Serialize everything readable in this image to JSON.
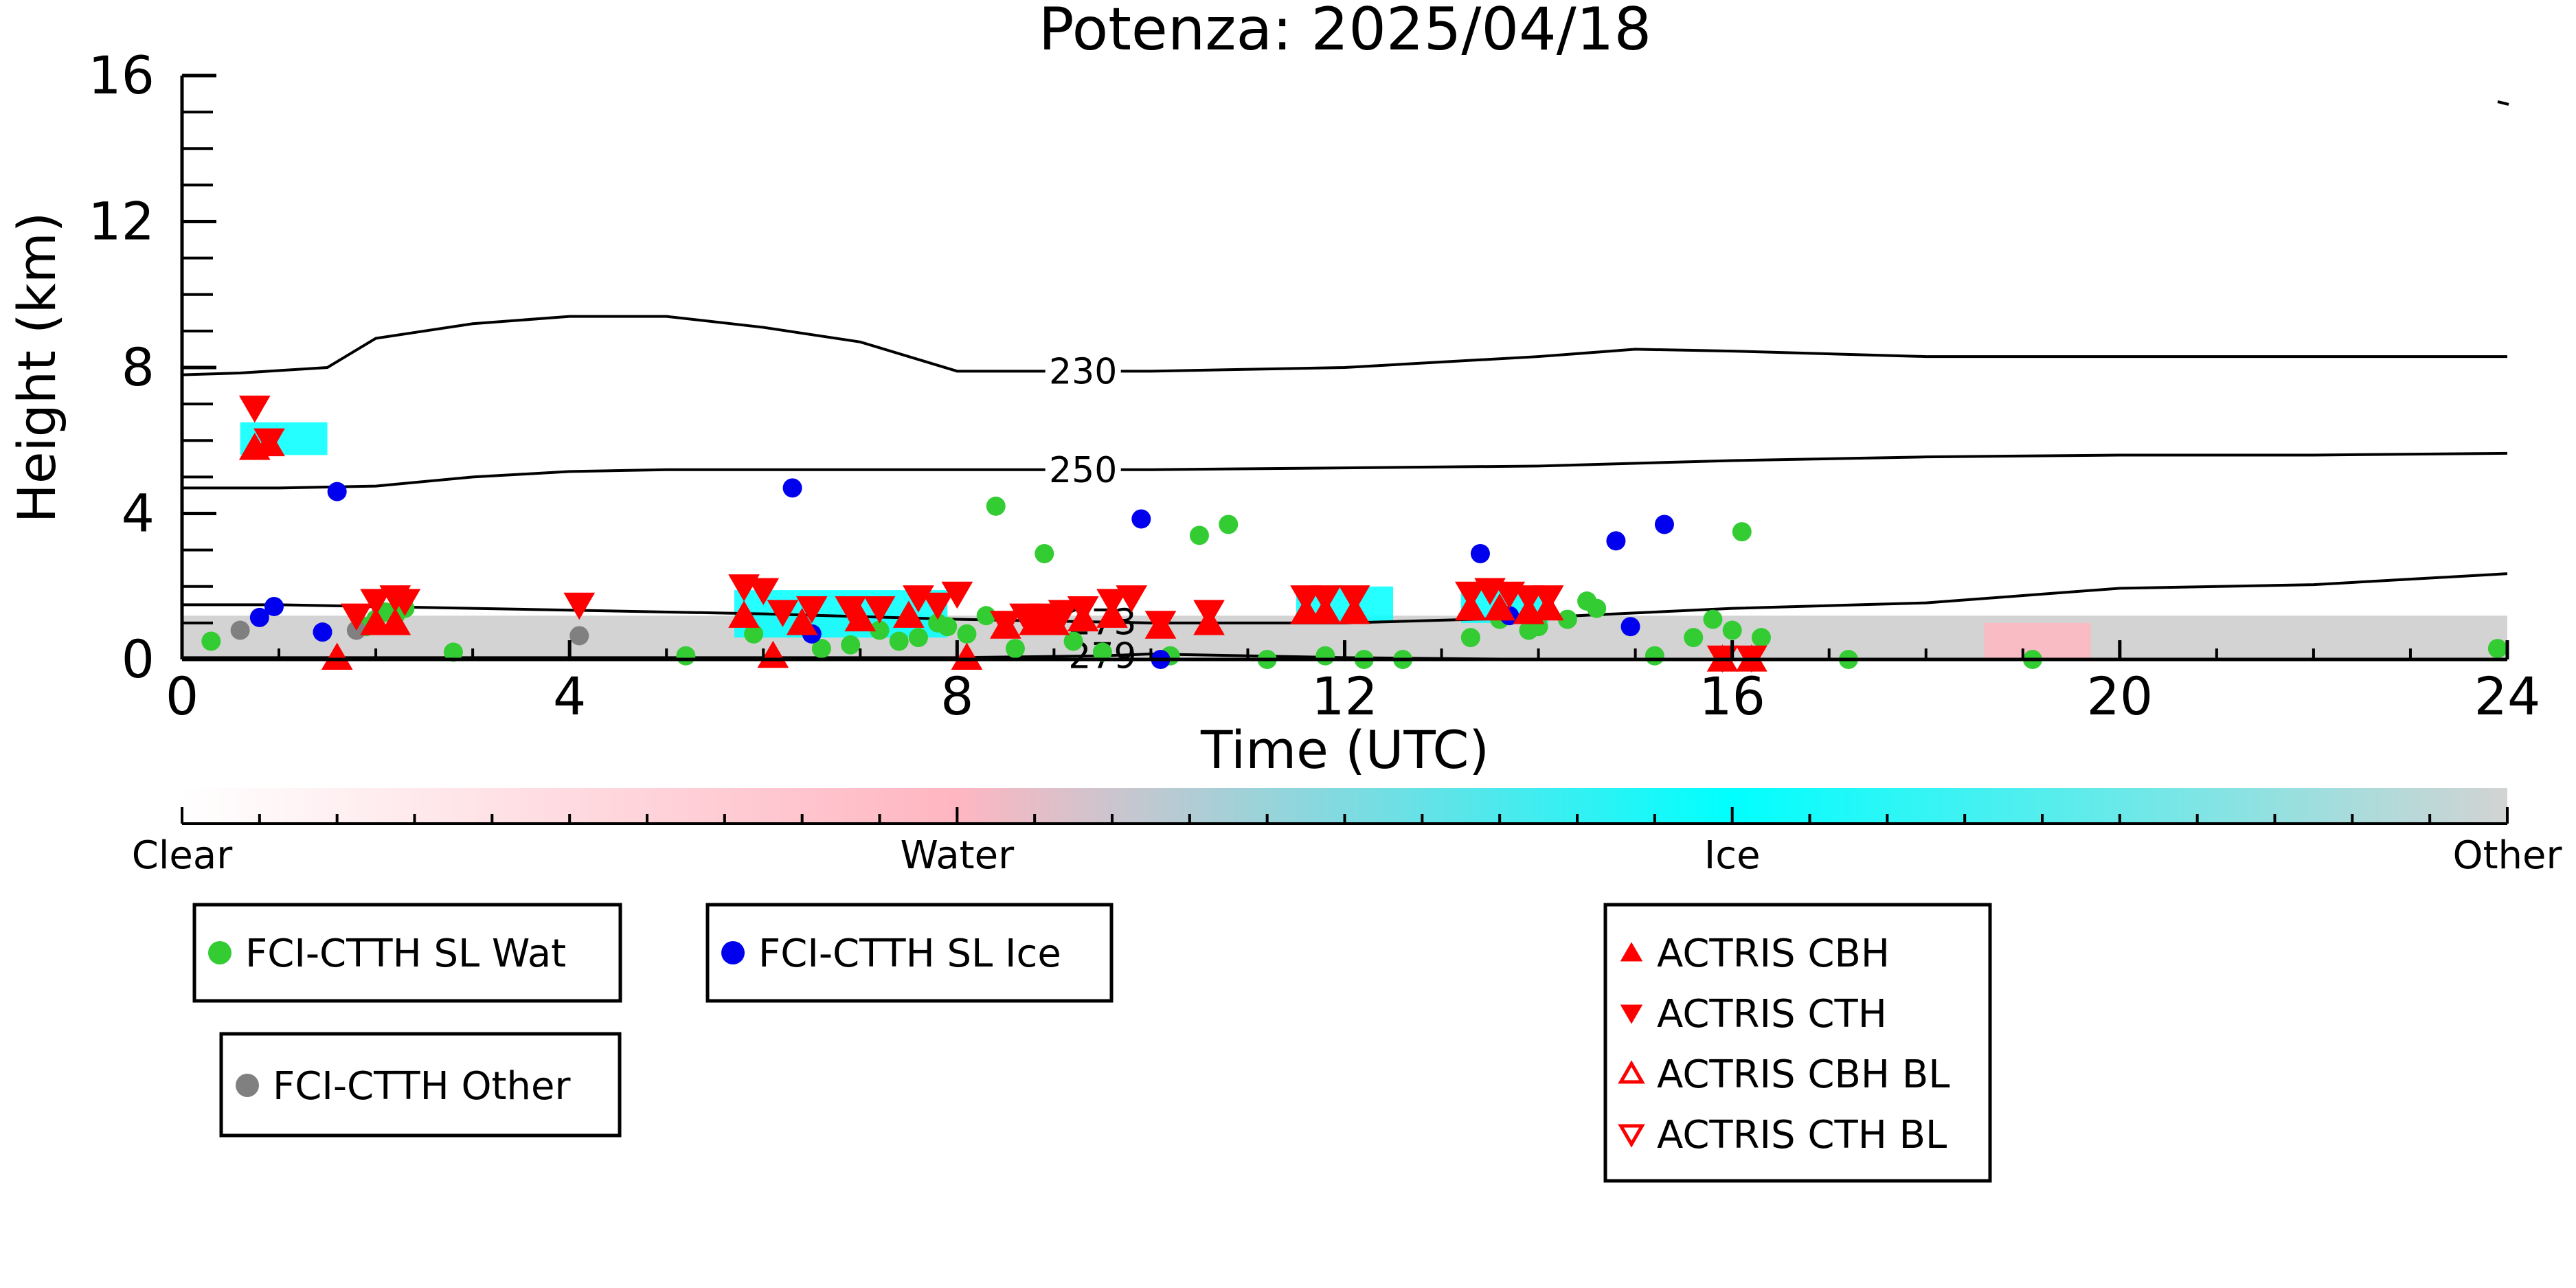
{
  "chart_data": {
    "type": "scatter",
    "title": "Potenza: 2025/04/18",
    "xlabel": "Time (UTC)",
    "ylabel": "Height (km)",
    "xlim": [
      0,
      24
    ],
    "ylim": [
      0,
      16
    ],
    "x_ticks": [
      "0",
      "4",
      "8",
      "12",
      "16",
      "20",
      "24"
    ],
    "y_ticks": [
      "0",
      "4",
      "8",
      "12",
      "16"
    ],
    "grid": false,
    "colorbar": {
      "labels": [
        "Clear",
        "Water",
        "Ice",
        "Other"
      ],
      "colors": [
        "#ffffff",
        "#ffb6c1",
        "#00ffff",
        "#d3d3d3"
      ]
    },
    "contours": [
      {
        "label": "230",
        "x": [
          0,
          0.6,
          1.5,
          2,
          3,
          4,
          5,
          6,
          7,
          7.5,
          8,
          10,
          12,
          14,
          15,
          16,
          18,
          20,
          22,
          24
        ],
        "y": [
          7.8,
          7.85,
          8.0,
          8.8,
          9.2,
          9.4,
          9.4,
          9.1,
          8.7,
          8.3,
          7.9,
          7.9,
          8.0,
          8.3,
          8.5,
          8.45,
          8.3,
          8.3,
          8.3,
          8.3
        ]
      },
      {
        "label": "250",
        "x": [
          0,
          1,
          2,
          3,
          4,
          5,
          6,
          8,
          10,
          12,
          14,
          16,
          18,
          20,
          22,
          24
        ],
        "y": [
          4.7,
          4.7,
          4.75,
          5.0,
          5.15,
          5.2,
          5.2,
          5.2,
          5.2,
          5.25,
          5.3,
          5.45,
          5.55,
          5.6,
          5.6,
          5.65
        ]
      },
      {
        "label": "273",
        "x": [
          0,
          1,
          2,
          4,
          6,
          8,
          10,
          12,
          14,
          16,
          18,
          19,
          20,
          22,
          24
        ],
        "y": [
          1.5,
          1.5,
          1.45,
          1.35,
          1.25,
          1.1,
          1.0,
          1.0,
          1.15,
          1.4,
          1.55,
          1.75,
          1.95,
          2.05,
          2.35
        ]
      },
      {
        "label": "279",
        "x": [
          0,
          2,
          4,
          6,
          8,
          9.5,
          10,
          12,
          14,
          16,
          18,
          20,
          24
        ],
        "y": [
          0.05,
          0.05,
          0.05,
          0.05,
          0.05,
          0.1,
          0.15,
          0.05,
          0.0,
          0.0,
          0.0,
          0.0,
          0.0
        ]
      }
    ],
    "series": [
      {
        "name": "FCI-CTTH SL Wat",
        "marker": "circle",
        "color": "#33cc33",
        "x": [
          0.3,
          1.9,
          2.0,
          2.1,
          2.2,
          2.3,
          2.8,
          5.2,
          5.9,
          6.6,
          6.9,
          7.2,
          7.4,
          7.6,
          7.8,
          7.9,
          8.1,
          8.3,
          8.4,
          8.6,
          8.9,
          9.2,
          9.5,
          10.2,
          10.5,
          10.8,
          11.2,
          11.8,
          12.2,
          12.6,
          13.3,
          13.6,
          13.9,
          14.0,
          14.3,
          14.5,
          14.6,
          15.2,
          15.6,
          15.8,
          16.0,
          16.1,
          16.3,
          17.2,
          19.1,
          23.9
        ],
        "y": [
          0.5,
          0.9,
          1.1,
          1.3,
          1.2,
          1.4,
          0.2,
          0.1,
          0.7,
          0.3,
          0.4,
          0.8,
          0.5,
          0.6,
          1.0,
          0.9,
          0.7,
          1.2,
          4.2,
          0.3,
          2.9,
          0.5,
          0.2,
          0.1,
          3.4,
          3.7,
          0.0,
          0.1,
          0.0,
          0.0,
          0.6,
          1.1,
          0.8,
          0.9,
          1.1,
          1.6,
          1.4,
          0.1,
          0.6,
          1.1,
          0.8,
          3.5,
          0.6,
          0.0,
          0.0,
          0.3
        ]
      },
      {
        "name": "FCI-CTTH SL Ice",
        "marker": "circle",
        "color": "#0000ee",
        "x": [
          0.8,
          0.95,
          1.45,
          1.6,
          6.3,
          6.5,
          9.9,
          10.1,
          13.4,
          13.7,
          14.8,
          14.95,
          15.3
        ],
        "y": [
          1.15,
          1.45,
          0.75,
          4.6,
          4.7,
          0.7,
          3.85,
          0.0,
          2.9,
          1.2,
          3.25,
          0.9,
          3.7
        ]
      },
      {
        "name": "FCI-CTTH Other",
        "marker": "circle",
        "color": "#808080",
        "x": [
          0.6,
          1.8,
          4.1
        ],
        "y": [
          0.8,
          0.8,
          0.65
        ]
      },
      {
        "name": "ACTRIS CBH",
        "marker": "triangle-up",
        "color": "#ff0000",
        "x": [
          0.75,
          0.9,
          1.6,
          2.0,
          2.2,
          5.8,
          6.1,
          6.4,
          7.0,
          7.5,
          8.1,
          8.5,
          8.8,
          9.0,
          9.3,
          9.6,
          10.1,
          10.6,
          11.6,
          11.8,
          12.1,
          13.3,
          13.6,
          13.9,
          14.1,
          15.9,
          16.2
        ],
        "y": [
          5.8,
          5.9,
          0.05,
          1.0,
          1.0,
          1.2,
          0.1,
          1.0,
          1.1,
          1.2,
          0.05,
          0.9,
          1.0,
          1.0,
          1.1,
          1.2,
          0.9,
          1.0,
          1.3,
          1.3,
          1.3,
          1.4,
          1.4,
          1.3,
          1.4,
          0.0,
          0.0
        ]
      },
      {
        "name": "ACTRIS CTH",
        "marker": "triangle-down",
        "color": "#ff0000",
        "x": [
          0.75,
          0.9,
          1.8,
          2.0,
          2.2,
          2.3,
          4.1,
          5.8,
          6.0,
          6.2,
          6.5,
          6.9,
          7.2,
          7.6,
          7.8,
          8.0,
          8.5,
          8.7,
          8.9,
          9.1,
          9.3,
          9.6,
          9.8,
          10.1,
          10.6,
          11.6,
          11.8,
          12.1,
          13.3,
          13.5,
          13.7,
          13.9,
          14.1,
          15.9,
          16.2
        ],
        "y": [
          6.9,
          6.0,
          1.2,
          1.6,
          1.7,
          1.6,
          1.5,
          2.0,
          1.9,
          1.3,
          1.4,
          1.4,
          1.4,
          1.7,
          1.5,
          1.8,
          1.0,
          1.2,
          1.2,
          1.3,
          1.4,
          1.6,
          1.7,
          1.0,
          1.3,
          1.7,
          1.7,
          1.7,
          1.8,
          1.9,
          1.8,
          1.7,
          1.7,
          0.05,
          0.05
        ]
      }
    ],
    "legend": [
      {
        "label": "FCI-CTTH SL Wat",
        "marker": "circle",
        "color": "#33cc33"
      },
      {
        "label": "FCI-CTTH SL Ice",
        "marker": "circle",
        "color": "#0000ee"
      },
      {
        "label": "FCI-CTTH Other",
        "marker": "circle",
        "color": "#808080"
      },
      {
        "label": "ACTRIS CBH",
        "marker": "triangle-up",
        "color": "#ff0000"
      },
      {
        "label": "ACTRIS CTH",
        "marker": "triangle-down",
        "color": "#ff0000"
      },
      {
        "label": "ACTRIS CBH BL",
        "marker": "triangle-up-open",
        "color": "#ff0000"
      },
      {
        "label": "ACTRIS CTH BL",
        "marker": "triangle-down-open",
        "color": "#ff0000"
      }
    ],
    "background_cloud_types": [
      {
        "type": "Other",
        "x_start": 0.0,
        "x_end": 24.0,
        "top": 1.2
      },
      {
        "type": "Ice",
        "x_start": 0.6,
        "x_end": 1.5,
        "top": 6.5,
        "bottom": 5.6
      },
      {
        "type": "Ice",
        "x_start": 5.7,
        "x_end": 7.9,
        "top": 1.9,
        "bottom": 0.6
      },
      {
        "type": "Ice",
        "x_start": 11.5,
        "x_end": 12.5,
        "top": 2.0,
        "bottom": 1.0
      },
      {
        "type": "Ice",
        "x_start": 13.2,
        "x_end": 14.1,
        "top": 2.0,
        "bottom": 1.0
      },
      {
        "type": "Water",
        "x_start": 18.6,
        "x_end": 19.7,
        "top": 1.0,
        "bottom": 0.0
      }
    ]
  }
}
